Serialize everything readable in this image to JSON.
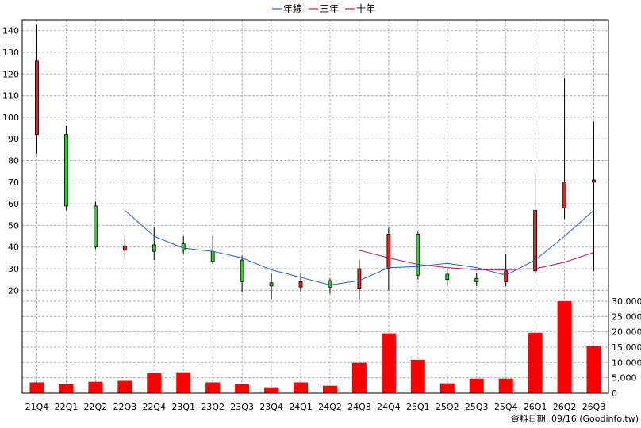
{
  "chart_data": {
    "type": "candlestick",
    "categories": [
      "21Q4",
      "22Q1",
      "22Q2",
      "22Q3",
      "22Q4",
      "23Q1",
      "23Q2",
      "23Q3",
      "23Q4",
      "24Q1",
      "24Q2",
      "24Q3",
      "24Q4",
      "25Q1",
      "25Q2",
      "25Q3",
      "25Q4",
      "26Q1",
      "26Q2",
      "26Q3"
    ],
    "price_ylim": [
      15,
      145
    ],
    "price_ticks": [
      20,
      30,
      40,
      50,
      60,
      70,
      80,
      90,
      100,
      110,
      120,
      130,
      140
    ],
    "volume_ylim": [
      0,
      30000
    ],
    "volume_ticks": [
      0,
      5000,
      10000,
      15000,
      20000,
      25000,
      30000
    ],
    "volume_tick_labels": [
      "0",
      "5,000",
      "10,000",
      "15,000",
      "20,000",
      "25,000",
      "30,000"
    ],
    "candles": [
      {
        "o": 92,
        "h": 143,
        "l": 83,
        "c": 126
      },
      {
        "o": 92,
        "h": 96,
        "l": 57,
        "c": 59
      },
      {
        "o": 59,
        "h": 61,
        "l": 39,
        "c": 40
      },
      {
        "o": 38.5,
        "h": 45,
        "l": 35,
        "c": 40.5
      },
      {
        "o": 41,
        "h": 49,
        "l": 34,
        "c": 38
      },
      {
        "o": 41.5,
        "h": 45,
        "l": 37,
        "c": 38.5
      },
      {
        "o": 38,
        "h": 45,
        "l": 32,
        "c": 33.5
      },
      {
        "o": 34,
        "h": 36,
        "l": 19,
        "c": 24
      },
      {
        "o": 23.5,
        "h": 28,
        "l": 16,
        "c": 22
      },
      {
        "o": 21.5,
        "h": 28,
        "l": 19.5,
        "c": 24
      },
      {
        "o": 24.5,
        "h": 25.5,
        "l": 18.5,
        "c": 21.5
      },
      {
        "o": 21,
        "h": 34,
        "l": 16,
        "c": 30
      },
      {
        "o": 30,
        "h": 49,
        "l": 20,
        "c": 46
      },
      {
        "o": 46,
        "h": 47,
        "l": 25,
        "c": 27
      },
      {
        "o": 27.5,
        "h": 30,
        "l": 22,
        "c": 25
      },
      {
        "o": 25.5,
        "h": 28,
        "l": 22,
        "c": 24
      },
      {
        "o": 24,
        "h": 37,
        "l": 22,
        "c": 29
      },
      {
        "o": 29,
        "h": 73,
        "l": 28,
        "c": 57
      },
      {
        "o": 58,
        "h": 118,
        "l": 53,
        "c": 70
      },
      {
        "o": 70,
        "h": 98,
        "l": 29,
        "c": 71
      }
    ],
    "volume": [
      3500,
      2900,
      3700,
      4000,
      6500,
      6800,
      3500,
      2900,
      1900,
      3500,
      2400,
      9900,
      19500,
      10900,
      3200,
      4700,
      4700,
      19700,
      30000,
      15300
    ],
    "series": [
      {
        "name": "年線",
        "color": "#1a60d0",
        "values": [
          null,
          null,
          null,
          57,
          45,
          39.5,
          38,
          35,
          29.5,
          26,
          22.5,
          24.5,
          30.5,
          31,
          32.5,
          30.5,
          27,
          34,
          45,
          57
        ]
      },
      {
        "name": "三年",
        "color": "#e02020",
        "values": [
          null,
          null,
          null,
          null,
          null,
          null,
          null,
          null,
          null,
          null,
          null,
          null,
          null,
          null,
          null,
          null,
          null,
          null,
          null,
          null
        ]
      },
      {
        "name": "十年",
        "color": "#b0155a",
        "values": [
          null,
          null,
          null,
          null,
          null,
          null,
          null,
          null,
          null,
          null,
          null,
          38.5,
          35,
          32,
          30.5,
          29.5,
          29.5,
          30,
          33,
          37.5
        ]
      }
    ],
    "colors": {
      "up": "#ee1c1c",
      "down": "#2bd02b",
      "volume": "#ff0000",
      "grid": "#b0b0b0"
    },
    "footnote": "資料日期: 09/16  (Goodinfo.tw)"
  }
}
